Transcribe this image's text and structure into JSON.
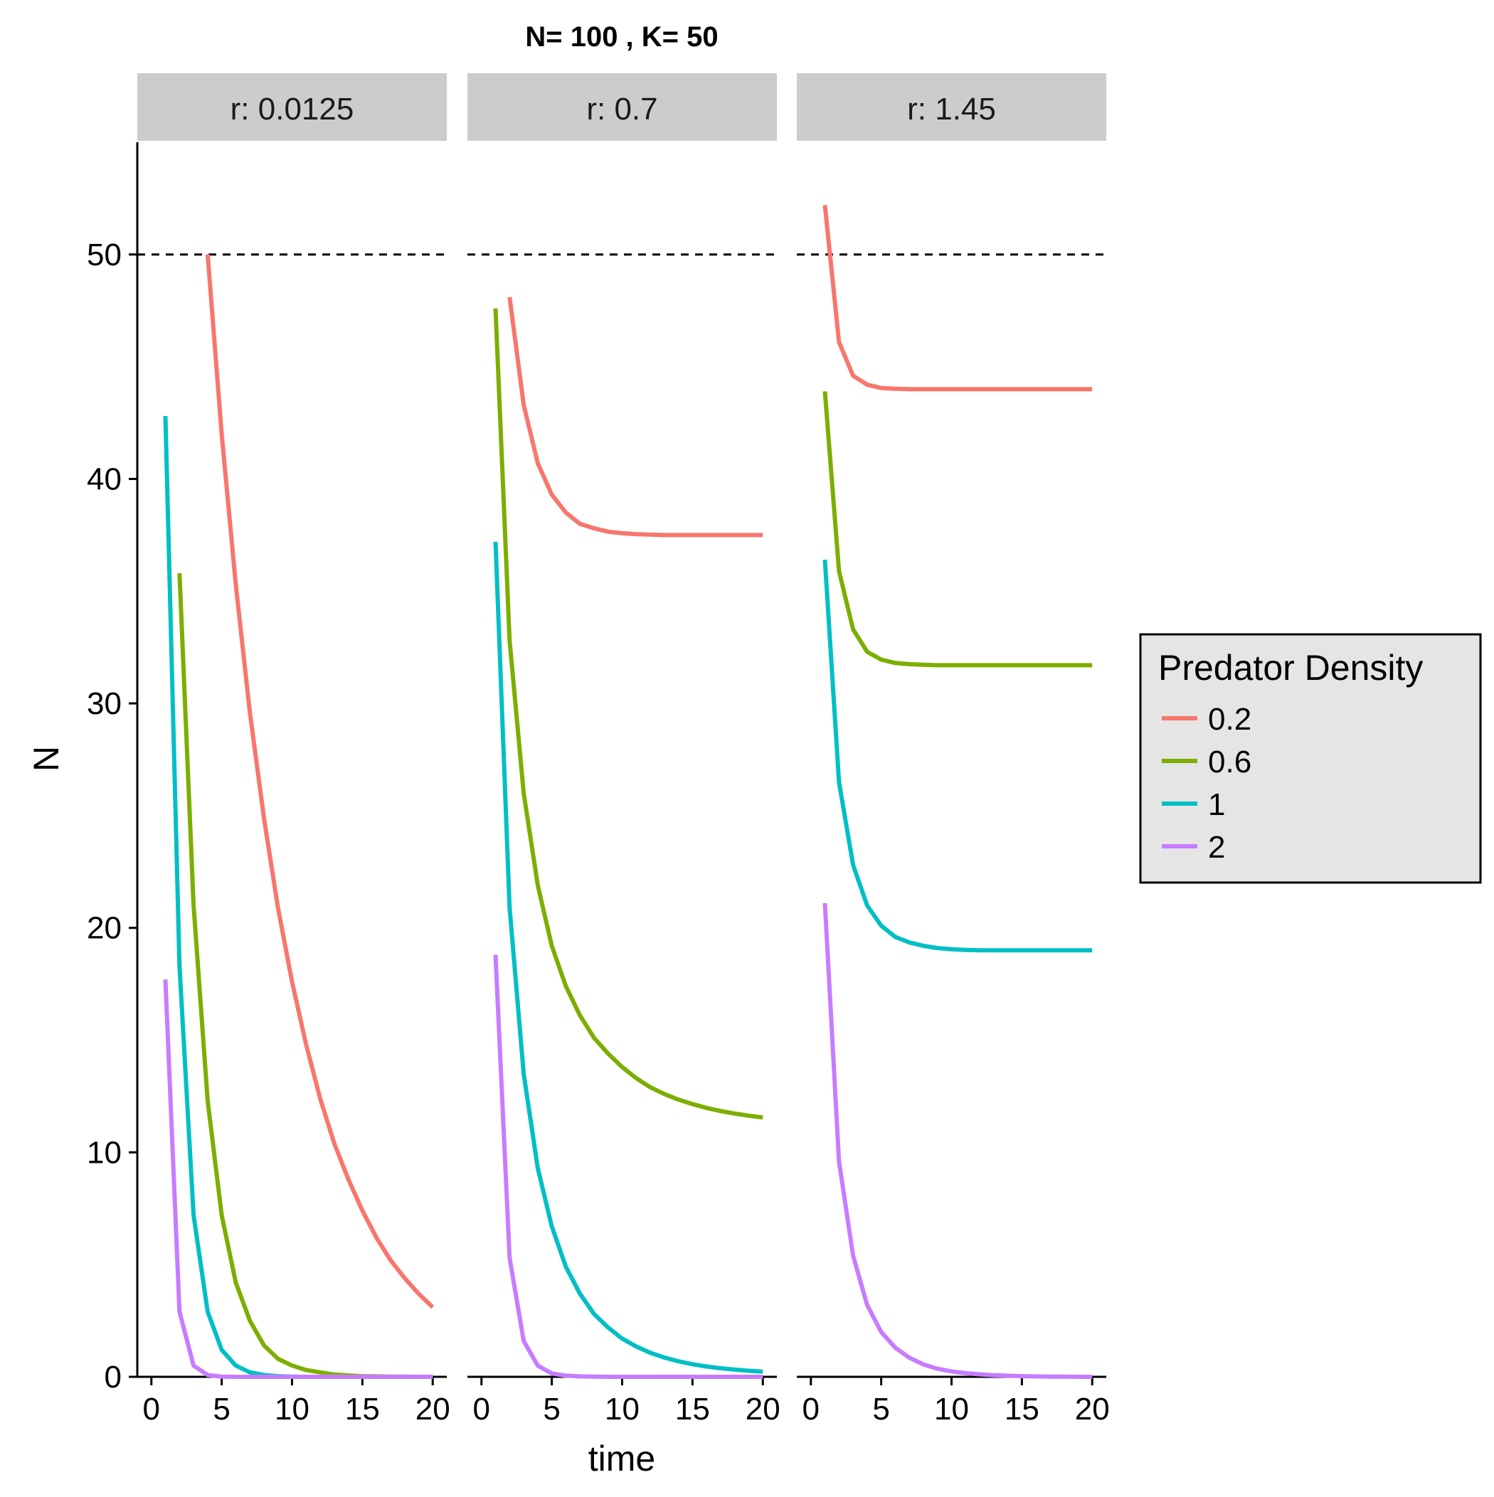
{
  "chart_data": {
    "type": "line",
    "title": "N= 100 , K= 50",
    "xlabel": "time",
    "ylabel": "N",
    "xlim": [
      -1,
      21
    ],
    "ylim": [
      0,
      55
    ],
    "xticks": [
      0,
      5,
      10,
      15,
      20
    ],
    "yticks": [
      0,
      10,
      20,
      30,
      40,
      50
    ],
    "xtick_labels": [
      "0",
      "5",
      "10",
      "15",
      "20"
    ],
    "ytick_labels": [
      "0",
      "10",
      "20",
      "30",
      "40",
      "50"
    ],
    "reference_line": {
      "y": 50,
      "style": "dashed"
    },
    "grid": false,
    "legend": {
      "title": "Predator Density",
      "placement": "right",
      "entries": [
        "0.2",
        "0.6",
        "1",
        "2"
      ]
    },
    "colors": {
      "0.2": "#F8766D",
      "0.6": "#7CAE00",
      "1": "#00BFC4",
      "2": "#C77CFF"
    },
    "panels": [
      {
        "label": "r: 0.0125",
        "series": [
          {
            "name": "0.2",
            "x": [
              4,
              5,
              6,
              7,
              8,
              9,
              10,
              11,
              12,
              13,
              14,
              15,
              16,
              17,
              18,
              19,
              20
            ],
            "y": [
              50.0,
              42.0,
              35.3,
              29.6,
              24.9,
              20.9,
              17.6,
              14.8,
              12.4,
              10.4,
              8.8,
              7.4,
              6.2,
              5.2,
              4.4,
              3.7,
              3.1
            ]
          },
          {
            "name": "0.6",
            "x": [
              2,
              3,
              4,
              5,
              6,
              7,
              8,
              9,
              10,
              11,
              12,
              13,
              14,
              15,
              16,
              17,
              18,
              19,
              20
            ],
            "y": [
              35.8,
              21.0,
              12.3,
              7.2,
              4.2,
              2.5,
              1.4,
              0.8,
              0.5,
              0.3,
              0.2,
              0.1,
              0.06,
              0.03,
              0.02,
              0.01,
              0.01,
              0,
              0
            ]
          },
          {
            "name": "1",
            "x": [
              1,
              2,
              3,
              4,
              5,
              6,
              7,
              8,
              9,
              10,
              11,
              12,
              13,
              14,
              15,
              16,
              17,
              18,
              19,
              20
            ],
            "y": [
              42.8,
              18.3,
              7.2,
              2.9,
              1.2,
              0.5,
              0.2,
              0.08,
              0.03,
              0.01,
              0,
              0,
              0,
              0,
              0,
              0,
              0,
              0,
              0,
              0
            ]
          },
          {
            "name": "2",
            "x": [
              1,
              2,
              3,
              4,
              5,
              6,
              7,
              8,
              9,
              10,
              11,
              12,
              13,
              14,
              15,
              16,
              17,
              18,
              19,
              20
            ],
            "y": [
              17.7,
              2.9,
              0.5,
              0.08,
              0.01,
              0,
              0,
              0,
              0,
              0,
              0,
              0,
              0,
              0,
              0,
              0,
              0,
              0,
              0,
              0
            ]
          }
        ]
      },
      {
        "label": "r: 0.7",
        "series": [
          {
            "name": "0.2",
            "x": [
              2,
              3,
              4,
              5,
              6,
              7,
              8,
              9,
              10,
              11,
              12,
              13,
              14,
              15,
              16,
              17,
              18,
              19,
              20
            ],
            "y": [
              48.1,
              43.3,
              40.7,
              39.3,
              38.5,
              38.0,
              37.8,
              37.65,
              37.58,
              37.54,
              37.52,
              37.5,
              37.5,
              37.5,
              37.5,
              37.5,
              37.5,
              37.5,
              37.5
            ]
          },
          {
            "name": "0.6",
            "x": [
              1,
              2,
              3,
              4,
              5,
              6,
              7,
              8,
              9,
              10,
              11,
              12,
              13,
              14,
              15,
              16,
              17,
              18,
              19,
              20
            ],
            "y": [
              47.6,
              32.8,
              26.0,
              21.9,
              19.2,
              17.4,
              16.1,
              15.1,
              14.4,
              13.8,
              13.3,
              12.9,
              12.6,
              12.35,
              12.15,
              11.98,
              11.84,
              11.73,
              11.63,
              11.55
            ]
          },
          {
            "name": "1",
            "x": [
              1,
              2,
              3,
              4,
              5,
              6,
              7,
              8,
              9,
              10,
              11,
              12,
              13,
              14,
              15,
              16,
              17,
              18,
              19,
              20
            ],
            "y": [
              37.2,
              20.9,
              13.5,
              9.3,
              6.7,
              4.9,
              3.7,
              2.8,
              2.2,
              1.7,
              1.35,
              1.07,
              0.86,
              0.69,
              0.56,
              0.46,
              0.38,
              0.32,
              0.27,
              0.23
            ]
          },
          {
            "name": "2",
            "x": [
              1,
              2,
              3,
              4,
              5,
              6,
              7,
              8,
              9,
              10,
              11,
              12,
              13,
              14,
              15,
              16,
              17,
              18,
              19,
              20
            ],
            "y": [
              18.8,
              5.3,
              1.6,
              0.5,
              0.15,
              0.05,
              0.02,
              0.01,
              0,
              0,
              0,
              0,
              0,
              0,
              0,
              0,
              0,
              0,
              0,
              0
            ]
          }
        ]
      },
      {
        "label": "r: 1.45",
        "series": [
          {
            "name": "0.2",
            "x": [
              1,
              2,
              3,
              4,
              5,
              6,
              7,
              8,
              9,
              10,
              11,
              12,
              13,
              14,
              15,
              16,
              17,
              18,
              19,
              20
            ],
            "y": [
              52.2,
              46.1,
              44.6,
              44.2,
              44.05,
              44.02,
              44.0,
              44.0,
              44.0,
              44.0,
              44.0,
              44.0,
              44.0,
              44.0,
              44.0,
              44.0,
              44.0,
              44.0,
              44.0,
              44.0
            ]
          },
          {
            "name": "0.6",
            "x": [
              1,
              2,
              3,
              4,
              5,
              6,
              7,
              8,
              9,
              10,
              11,
              12,
              13,
              14,
              15,
              16,
              17,
              18,
              19,
              20
            ],
            "y": [
              43.9,
              35.9,
              33.3,
              32.3,
              31.95,
              31.8,
              31.75,
              31.72,
              31.7,
              31.7,
              31.7,
              31.7,
              31.7,
              31.7,
              31.7,
              31.7,
              31.7,
              31.7,
              31.7,
              31.7
            ]
          },
          {
            "name": "1",
            "x": [
              1,
              2,
              3,
              4,
              5,
              6,
              7,
              8,
              9,
              10,
              11,
              12,
              13,
              14,
              15,
              16,
              17,
              18,
              19,
              20
            ],
            "y": [
              36.4,
              26.5,
              22.8,
              21.0,
              20.1,
              19.6,
              19.35,
              19.2,
              19.1,
              19.05,
              19.02,
              19.0,
              19.0,
              19.0,
              19.0,
              19.0,
              19.0,
              19.0,
              19.0,
              19.0
            ]
          },
          {
            "name": "2",
            "x": [
              1,
              2,
              3,
              4,
              5,
              6,
              7,
              8,
              9,
              10,
              11,
              12,
              13,
              14,
              15,
              16,
              17,
              18,
              19,
              20
            ],
            "y": [
              21.1,
              9.6,
              5.4,
              3.2,
              2.0,
              1.3,
              0.85,
              0.55,
              0.36,
              0.24,
              0.16,
              0.11,
              0.07,
              0.05,
              0.03,
              0.02,
              0.01,
              0.01,
              0,
              0
            ]
          }
        ]
      }
    ]
  }
}
